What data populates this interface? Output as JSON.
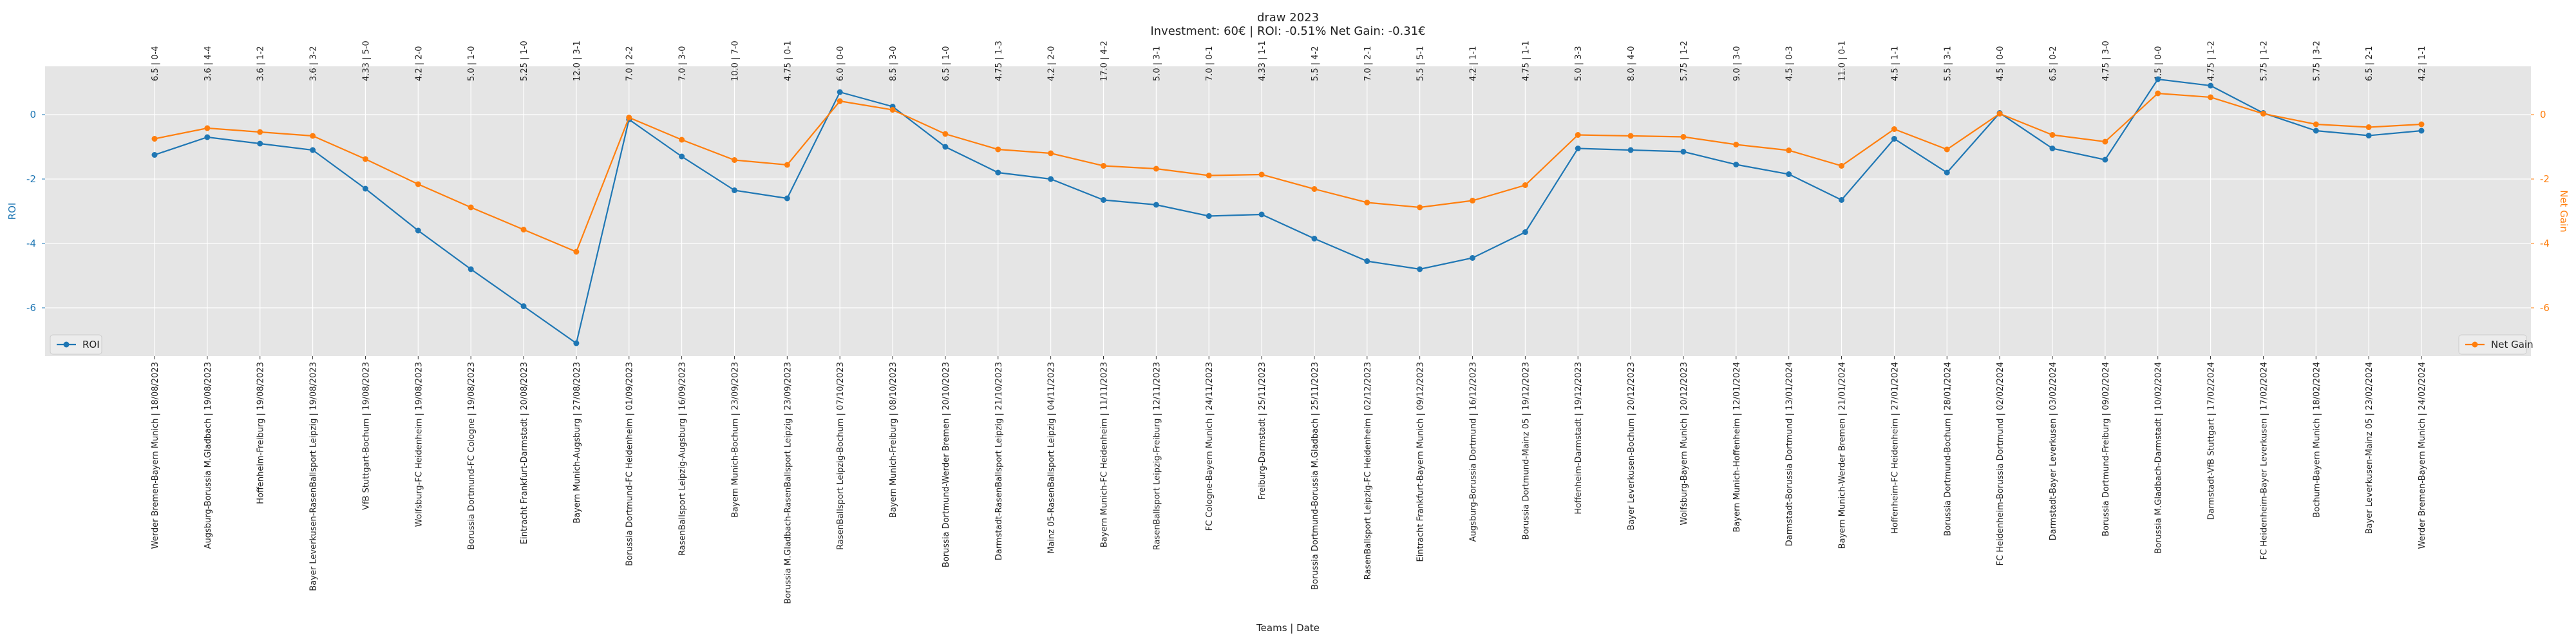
{
  "chart_data": {
    "type": "line",
    "title": "draw 2023",
    "subtitle": "Investment: 60€ | ROI: -0.51% Net Gain: -0.31€",
    "xlabel": "Teams | Date",
    "ylabel_left": "ROI",
    "ylabel_right": "Net Gain",
    "ylim_left": [
      -7.5,
      1.5
    ],
    "ylim_right": [
      -7.5,
      1.5
    ],
    "yticks": [
      0,
      -2,
      -4,
      -6
    ],
    "grid": true,
    "legend_left": "lower-left",
    "legend_right": "lower-right",
    "categories": [
      "Werder Bremen-Bayern Munich | 18/08/2023",
      "Augsburg-Borussia M.Gladbach | 19/08/2023",
      "Hoffenheim-Freiburg | 19/08/2023",
      "Bayer Leverkusen-RasenBallsport Leipzig | 19/08/2023",
      "VfB Stuttgart-Bochum | 19/08/2023",
      "Wolfsburg-FC Heidenheim | 19/08/2023",
      "Borussia Dortmund-FC Cologne | 19/08/2023",
      "Eintracht Frankfurt-Darmstadt | 20/08/2023",
      "Bayern Munich-Augsburg | 27/08/2023",
      "Borussia Dortmund-FC Heidenheim | 01/09/2023",
      "RasenBallsport Leipzig-Augsburg | 16/09/2023",
      "Bayern Munich-Bochum | 23/09/2023",
      "Borussia M.Gladbach-RasenBallsport Leipzig | 23/09/2023",
      "RasenBallsport Leipzig-Bochum | 07/10/2023",
      "Bayern Munich-Freiburg | 08/10/2023",
      "Borussia Dortmund-Werder Bremen | 20/10/2023",
      "Darmstadt-RasenBallsport Leipzig | 21/10/2023",
      "Mainz 05-RasenBallsport Leipzig | 04/11/2023",
      "Bayern Munich-FC Heidenheim | 11/11/2023",
      "RasenBallsport Leipzig-Freiburg | 12/11/2023",
      "FC Cologne-Bayern Munich | 24/11/2023",
      "Freiburg-Darmstadt | 25/11/2023",
      "Borussia Dortmund-Borussia M.Gladbach | 25/11/2023",
      "RasenBallsport Leipzig-FC Heidenheim | 02/12/2023",
      "Eintracht Frankfurt-Bayern Munich | 09/12/2023",
      "Augsburg-Borussia Dortmund | 16/12/2023",
      "Borussia Dortmund-Mainz 05 | 19/12/2023",
      "Hoffenheim-Darmstadt | 19/12/2023",
      "Bayer Leverkusen-Bochum | 20/12/2023",
      "Wolfsburg-Bayern Munich | 20/12/2023",
      "Bayern Munich-Hoffenheim | 12/01/2024",
      "Darmstadt-Borussia Dortmund | 13/01/2024",
      "Bayern Munich-Werder Bremen | 21/01/2024",
      "Hoffenheim-FC Heidenheim | 27/01/2024",
      "Borussia Dortmund-Bochum | 28/01/2024",
      "FC Heidenheim-Borussia Dortmund | 02/02/2024",
      "Darmstadt-Bayer Leverkusen | 03/02/2024",
      "Borussia Dortmund-Freiburg | 09/02/2024",
      "Borussia M.Gladbach-Darmstadt | 10/02/2024",
      "Darmstadt-VfB Stuttgart | 17/02/2024",
      "FC Heidenheim-Bayer Leverkusen | 17/02/2024",
      "Bochum-Bayern Munich | 18/02/2024",
      "Bayer Leverkusen-Mainz 05 | 23/02/2024",
      "Werder Bremen-Bayern Munich | 24/02/2024"
    ],
    "top_labels": [
      "6.5 | 0-4",
      "3.6 | 4-4",
      "3.6 | 1-2",
      "3.6 | 3-2",
      "4.33 | 5-0",
      "4.2 | 2-0",
      "5.0 | 1-0",
      "5.25 | 1-0",
      "12.0 | 3-1",
      "7.0 | 2-2",
      "7.0 | 3-0",
      "10.0 | 7-0",
      "4.75 | 0-1",
      "6.0 | 0-0",
      "8.5 | 3-0",
      "6.5 | 1-0",
      "4.75 | 1-3",
      "4.2 | 2-0",
      "17.0 | 4-2",
      "5.0 | 3-1",
      "7.0 | 0-1",
      "4.33 | 1-1",
      "5.5 | 4-2",
      "7.0 | 2-1",
      "5.5 | 5-1",
      "4.2 | 1-1",
      "4.75 | 1-1",
      "5.0 | 3-3",
      "8.0 | 4-0",
      "5.75 | 1-2",
      "9.0 | 3-0",
      "4.5 | 0-3",
      "11.0 | 0-1",
      "4.5 | 1-1",
      "5.5 | 3-1",
      "4.5 | 0-0",
      "6.5 | 0-2",
      "4.75 | 3-0",
      "4.5 | 0-0",
      "4.75 | 1-2",
      "5.75 | 1-2",
      "5.75 | 3-2",
      "6.5 | 2-1",
      "4.2 | 1-1"
    ],
    "series": [
      {
        "name": "ROI",
        "color": "#1f77b4",
        "axis": "left",
        "values": [
          -1.25,
          -0.7,
          -0.9,
          -1.1,
          -2.3,
          -3.6,
          -4.8,
          -5.95,
          -7.1,
          -0.15,
          -1.3,
          -2.35,
          -2.6,
          0.7,
          0.25,
          -1.0,
          -1.8,
          -2.0,
          -2.65,
          -2.8,
          -3.15,
          -3.1,
          -3.85,
          -4.55,
          -4.8,
          -4.45,
          -3.65,
          -1.05,
          -1.1,
          -1.15,
          -1.55,
          -1.85,
          -2.65,
          -0.75,
          -1.8,
          0.05,
          -1.05,
          -1.4,
          1.1,
          0.9,
          0.05,
          -0.5,
          -0.65,
          -0.5
        ]
      },
      {
        "name": "Net Gain",
        "color": "#ff7f0e",
        "axis": "right",
        "values": [
          -0.75,
          -0.42,
          -0.54,
          -0.66,
          -1.38,
          -2.16,
          -2.88,
          -3.57,
          -4.26,
          -0.09,
          -0.78,
          -1.41,
          -1.56,
          0.42,
          0.15,
          -0.6,
          -1.08,
          -1.2,
          -1.59,
          -1.68,
          -1.89,
          -1.86,
          -2.31,
          -2.73,
          -2.88,
          -2.67,
          -2.19,
          -0.63,
          -0.66,
          -0.69,
          -0.93,
          -1.11,
          -1.59,
          -0.45,
          -1.08,
          0.03,
          -0.63,
          -0.84,
          0.66,
          0.54,
          0.03,
          -0.3,
          -0.39,
          -0.3
        ]
      }
    ]
  }
}
